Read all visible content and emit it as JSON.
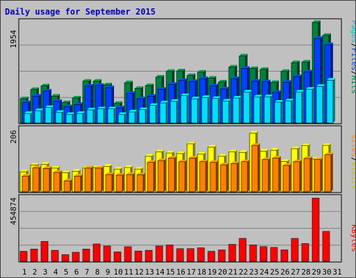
{
  "chart_data": [
    {
      "type": "bar",
      "title": "Daily usage for September 2015",
      "ymax_label": "1954",
      "ylim": [
        0,
        1954
      ],
      "categories": [
        "1",
        "2",
        "3",
        "4",
        "5",
        "6",
        "7",
        "8",
        "9",
        "10",
        "11",
        "12",
        "13",
        "14",
        "15",
        "16",
        "17",
        "18",
        "19",
        "20",
        "21",
        "22",
        "23",
        "24",
        "25",
        "26",
        "27",
        "28",
        "29",
        "30",
        "31"
      ],
      "weekend_days": [
        "5",
        "6",
        "12",
        "13",
        "19",
        "20",
        "26",
        "27"
      ],
      "legend": [
        "Pages",
        "/",
        "Files",
        "/",
        "Hits"
      ],
      "series": [
        {
          "name": "Hits",
          "color": "#008040",
          "values": [
            470,
            650,
            720,
            520,
            395,
            485,
            810,
            810,
            740,
            380,
            780,
            670,
            725,
            890,
            1000,
            1010,
            920,
            985,
            870,
            795,
            1085,
            1300,
            1055,
            1040,
            785,
            1000,
            1170,
            1180,
            1950,
            1700,
            0
          ]
        },
        {
          "name": "Files",
          "color": "#0040ff",
          "values": [
            395,
            520,
            620,
            420,
            315,
            360,
            715,
            730,
            685,
            295,
            575,
            470,
            520,
            655,
            750,
            825,
            805,
            860,
            720,
            660,
            860,
            1060,
            810,
            800,
            595,
            790,
            900,
            990,
            1640,
            1520,
            0
          ]
        },
        {
          "name": "Pages",
          "color": "#00e0ff",
          "values": [
            185,
            240,
            300,
            205,
            165,
            185,
            255,
            275,
            275,
            165,
            215,
            260,
            340,
            390,
            420,
            530,
            470,
            495,
            475,
            425,
            485,
            600,
            505,
            510,
            405,
            430,
            600,
            655,
            710,
            830,
            0
          ]
        }
      ]
    },
    {
      "type": "bar",
      "ymax_label": "206",
      "ylim": [
        0,
        206
      ],
      "legend": [
        "Sites",
        "/",
        "Visits"
      ],
      "series": [
        {
          "name": "Visits",
          "color": "#ffff00",
          "values": [
            66,
            88,
            90,
            78,
            63,
            68,
            78,
            80,
            84,
            75,
            80,
            75,
            117,
            132,
            128,
            126,
            158,
            124,
            147,
            117,
            132,
            130,
            193,
            134,
            137,
            100,
            142,
            152,
            108,
            153,
            0
          ]
        },
        {
          "name": "Sites",
          "color": "#ff8000",
          "values": [
            52,
            79,
            77,
            64,
            36,
            52,
            78,
            78,
            57,
            55,
            57,
            56,
            97,
            103,
            111,
            99,
            111,
            99,
            97,
            89,
            93,
            99,
            153,
            106,
            111,
            87,
            99,
            110,
            106,
            122,
            0
          ]
        }
      ]
    },
    {
      "type": "bar",
      "ymax_label": "454874",
      "ylim": [
        0,
        454874
      ],
      "legend": [
        "KBytes"
      ],
      "series": [
        {
          "name": "KBytes",
          "color": "#ff0000",
          "values": [
            72000,
            88000,
            143000,
            79000,
            48000,
            65000,
            88000,
            125000,
            110000,
            68000,
            105000,
            74000,
            79000,
            110000,
            118000,
            91000,
            91000,
            97000,
            72000,
            82000,
            122000,
            165000,
            118000,
            106000,
            100000,
            82000,
            165000,
            128000,
            454874,
            215000,
            0
          ]
        }
      ]
    }
  ]
}
